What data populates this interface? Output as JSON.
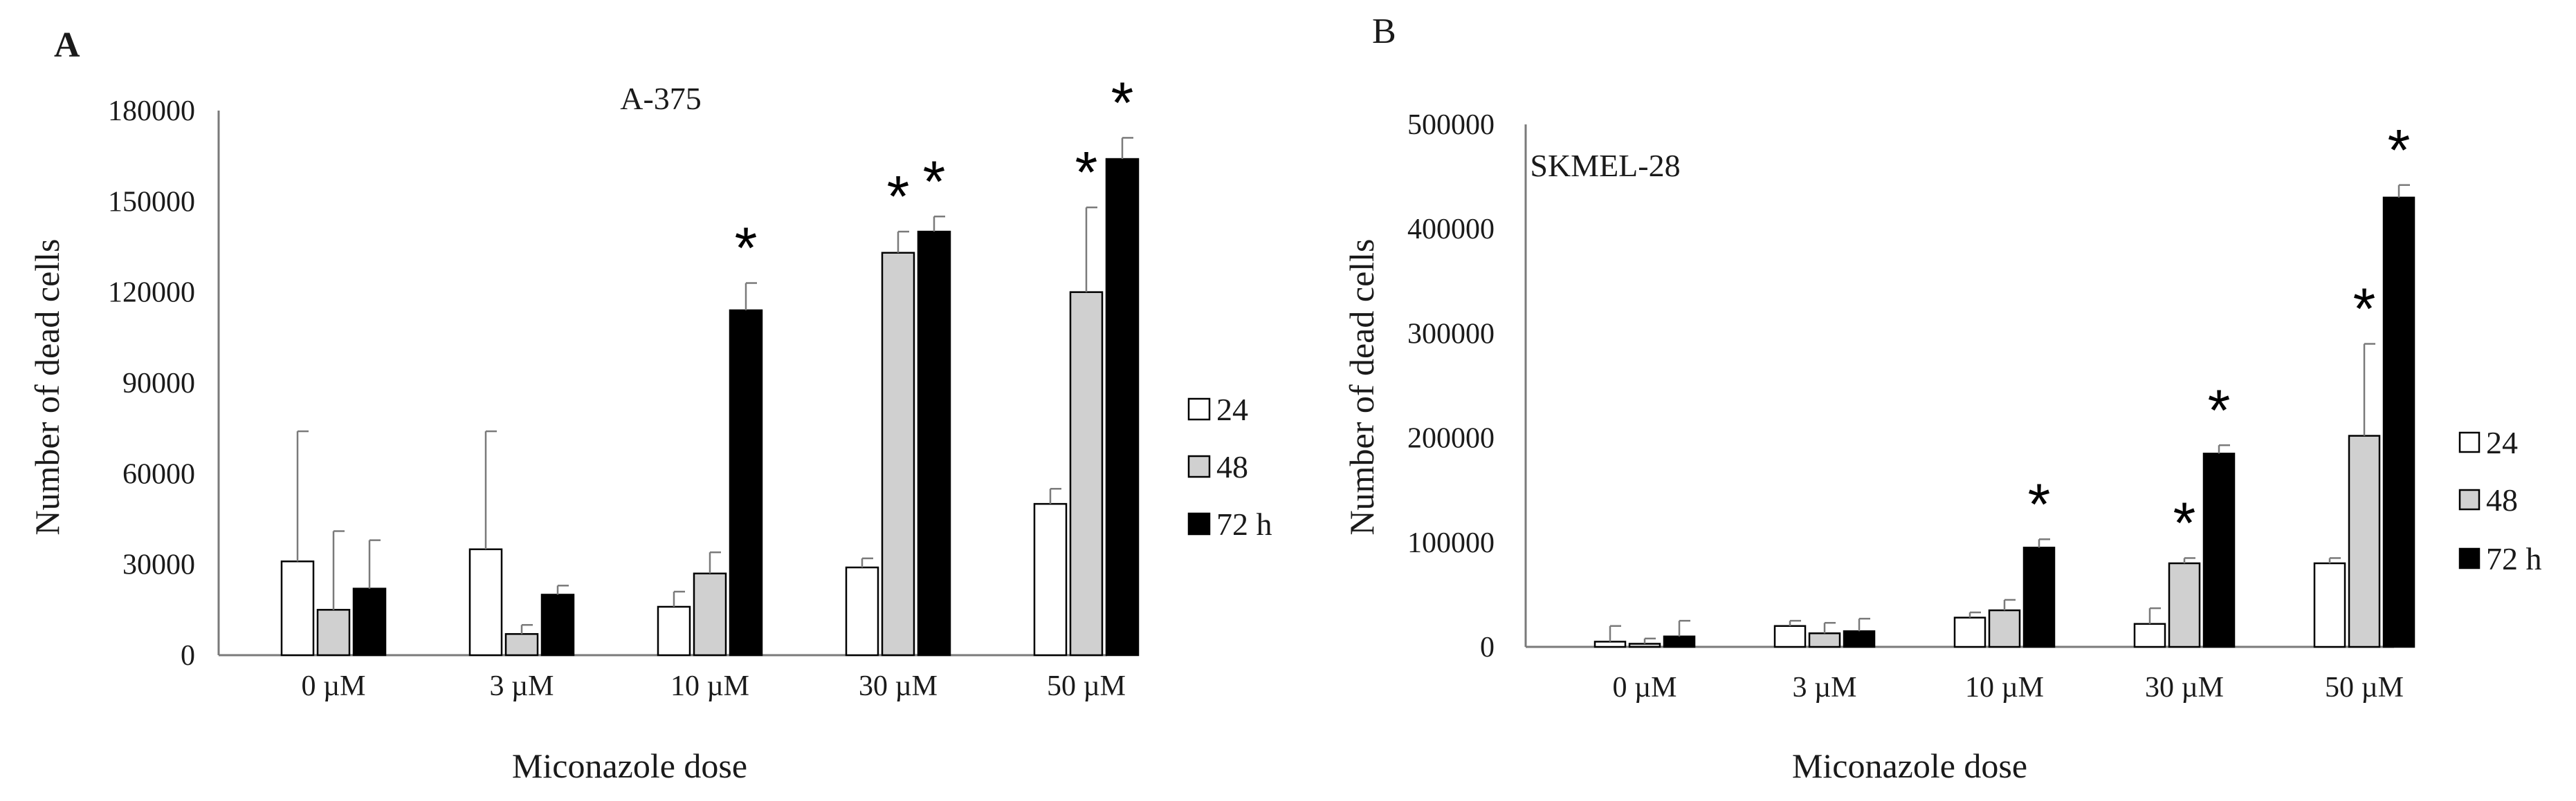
{
  "colors": {
    "s24": "#ffffff",
    "s48": "#d0d0d0",
    "s72": "#000000",
    "axis": "#7a7a7a",
    "stroke": "#000000"
  },
  "chart_data": [
    {
      "panel": "A",
      "type": "bar",
      "title": "A-375",
      "xlabel": "Miconazole dose",
      "ylabel": "Number of dead cells",
      "ylim": [
        0,
        180000
      ],
      "yticks": [
        0,
        30000,
        60000,
        90000,
        120000,
        150000,
        180000
      ],
      "categories": [
        "0 µM",
        "3 µM",
        "10 µM",
        "30 µM",
        "50 µM"
      ],
      "legend_position": "right",
      "series": [
        {
          "name": "24",
          "values": [
            31000,
            35000,
            16000,
            29000,
            50000
          ],
          "errors": [
            43000,
            39000,
            5000,
            3000,
            5000
          ],
          "significant": [
            false,
            false,
            false,
            false,
            false
          ]
        },
        {
          "name": "48",
          "values": [
            15000,
            7000,
            27000,
            133000,
            120000
          ],
          "errors": [
            26000,
            3000,
            7000,
            7000,
            28000
          ],
          "significant": [
            false,
            false,
            false,
            true,
            true
          ]
        },
        {
          "name": "72 h",
          "values": [
            22000,
            20000,
            114000,
            140000,
            164000
          ],
          "errors": [
            16000,
            3000,
            9000,
            5000,
            7000
          ],
          "significant": [
            false,
            false,
            true,
            true,
            true
          ]
        }
      ]
    },
    {
      "panel": "B",
      "type": "bar",
      "title": "SKMEL-28",
      "xlabel": "Miconazole dose",
      "ylabel": "Number of dead cells",
      "ylim": [
        0,
        500000
      ],
      "yticks": [
        0,
        100000,
        200000,
        300000,
        400000,
        500000
      ],
      "categories": [
        "0 µM",
        "3 µM",
        "10 µM",
        "30 µM",
        "50 µM"
      ],
      "legend_position": "right",
      "series": [
        {
          "name": "24",
          "values": [
            5000,
            20000,
            28000,
            22000,
            80000
          ],
          "errors": [
            15000,
            5000,
            5000,
            15000,
            5000
          ],
          "significant": [
            false,
            false,
            false,
            false,
            false
          ]
        },
        {
          "name": "48",
          "values": [
            3000,
            13000,
            35000,
            80000,
            202000
          ],
          "errors": [
            5000,
            10000,
            10000,
            5000,
            88000
          ],
          "significant": [
            false,
            false,
            false,
            true,
            true
          ]
        },
        {
          "name": "72 h",
          "values": [
            10000,
            15000,
            95000,
            185000,
            430000
          ],
          "errors": [
            15000,
            12000,
            8000,
            8000,
            12000
          ],
          "significant": [
            false,
            false,
            true,
            true,
            true
          ]
        }
      ]
    }
  ]
}
